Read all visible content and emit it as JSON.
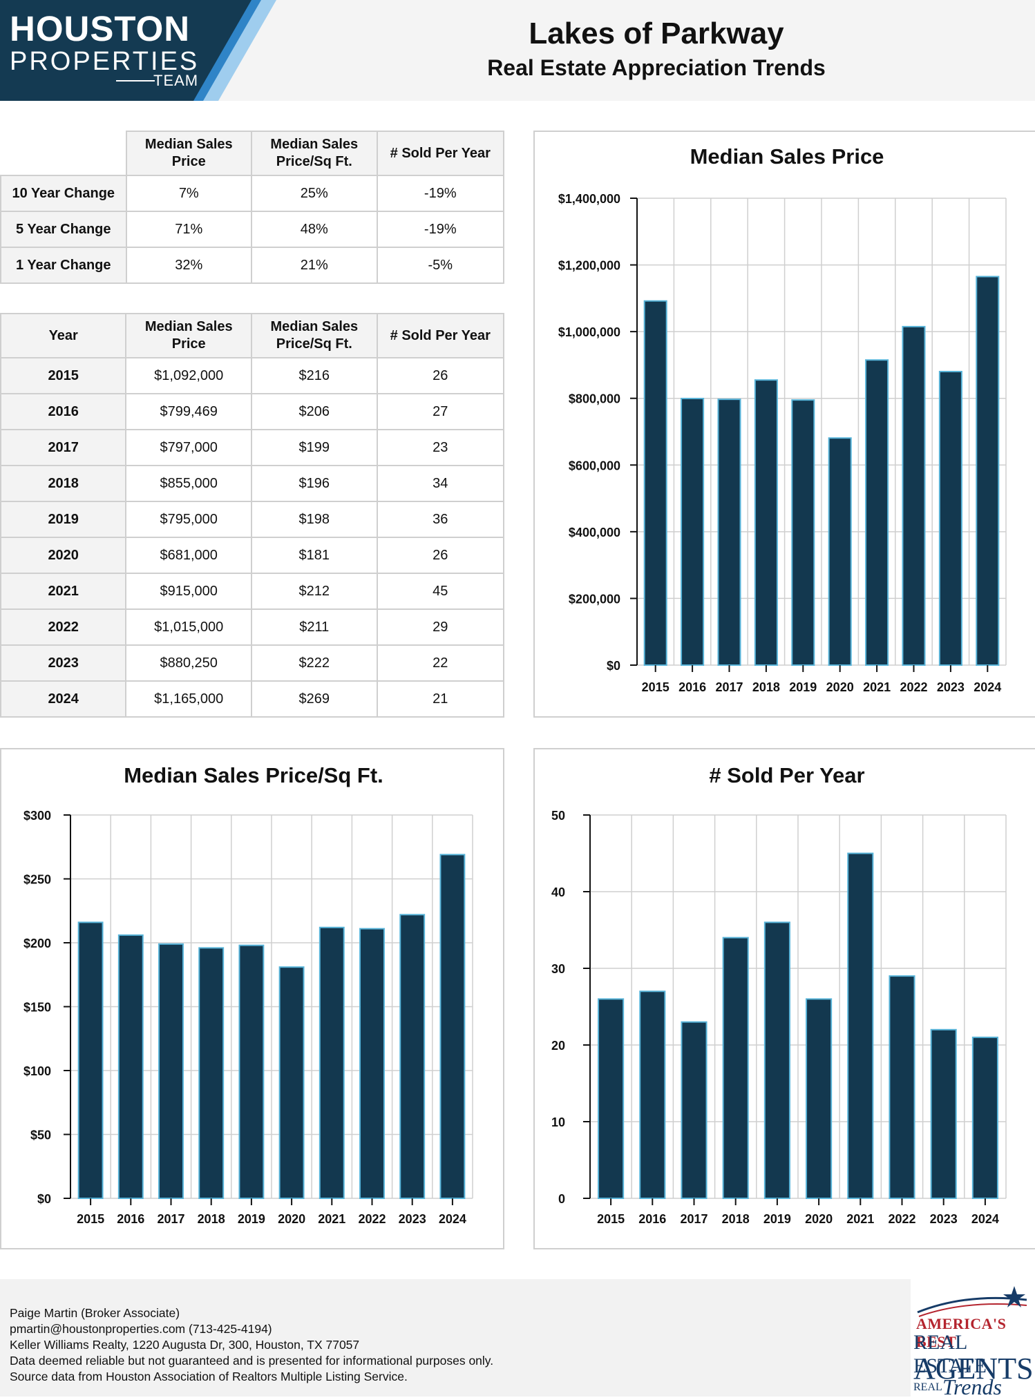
{
  "logo": {
    "line1": "HOUSTON",
    "line2": "PROPERTIES",
    "line3": "TEAM"
  },
  "header": {
    "title": "Lakes of Parkway",
    "subtitle": "Real Estate Appreciation Trends"
  },
  "change_table": {
    "columns": [
      "Median Sales Price",
      "Median Sales Price/Sq Ft.",
      "# Sold Per Year"
    ],
    "rows": [
      {
        "label": "10 Year Change",
        "values": [
          "7%",
          "25%",
          "-19%"
        ]
      },
      {
        "label": "5 Year Change",
        "values": [
          "71%",
          "48%",
          "-19%"
        ]
      },
      {
        "label": "1 Year Change",
        "values": [
          "32%",
          "21%",
          "-5%"
        ]
      }
    ]
  },
  "year_table": {
    "columns": [
      "Year",
      "Median Sales Price",
      "Median Sales Price/Sq Ft.",
      "# Sold Per Year"
    ],
    "rows": [
      [
        "2015",
        "$1,092,000",
        "$216",
        "26"
      ],
      [
        "2016",
        "$799,469",
        "$206",
        "27"
      ],
      [
        "2017",
        "$797,000",
        "$199",
        "23"
      ],
      [
        "2018",
        "$855,000",
        "$196",
        "34"
      ],
      [
        "2019",
        "$795,000",
        "$198",
        "36"
      ],
      [
        "2020",
        "$681,000",
        "$181",
        "26"
      ],
      [
        "2021",
        "$915,000",
        "$212",
        "45"
      ],
      [
        "2022",
        "$1,015,000",
        "$211",
        "29"
      ],
      [
        "2023",
        "$880,250",
        "$222",
        "22"
      ],
      [
        "2024",
        "$1,165,000",
        "$269",
        "21"
      ]
    ]
  },
  "chart_data": [
    {
      "type": "bar",
      "title": "Median Sales Price",
      "categories": [
        "2015",
        "2016",
        "2017",
        "2018",
        "2019",
        "2020",
        "2021",
        "2022",
        "2023",
        "2024"
      ],
      "values": [
        1092000,
        799469,
        797000,
        855000,
        795000,
        681000,
        915000,
        1015000,
        880250,
        1165000
      ],
      "ylim": [
        0,
        1400000
      ],
      "yticks": [
        0,
        200000,
        400000,
        600000,
        800000,
        1000000,
        1200000,
        1400000
      ],
      "ytick_labels": [
        "$0",
        "$200,000",
        "$400,000",
        "$600,000",
        "$800,000",
        "$1,000,000",
        "$1,200,000",
        "$1,400,000"
      ],
      "grid": true
    },
    {
      "type": "bar",
      "title": "Median Sales Price/Sq Ft.",
      "categories": [
        "2015",
        "2016",
        "2017",
        "2018",
        "2019",
        "2020",
        "2021",
        "2022",
        "2023",
        "2024"
      ],
      "values": [
        216,
        206,
        199,
        196,
        198,
        181,
        212,
        211,
        222,
        269
      ],
      "ylim": [
        0,
        300
      ],
      "yticks": [
        0,
        50,
        100,
        150,
        200,
        250,
        300
      ],
      "ytick_labels": [
        "$0",
        "$50",
        "$100",
        "$150",
        "$200",
        "$250",
        "$300"
      ],
      "grid": true
    },
    {
      "type": "bar",
      "title": "# Sold Per Year",
      "categories": [
        "2015",
        "2016",
        "2017",
        "2018",
        "2019",
        "2020",
        "2021",
        "2022",
        "2023",
        "2024"
      ],
      "values": [
        26,
        27,
        23,
        34,
        36,
        26,
        45,
        29,
        22,
        21
      ],
      "ylim": [
        0,
        50
      ],
      "yticks": [
        0,
        10,
        20,
        30,
        40,
        50
      ],
      "ytick_labels": [
        "0",
        "10",
        "20",
        "30",
        "40",
        "50"
      ],
      "grid": true
    }
  ],
  "colors": {
    "bar_fill": "#13384f",
    "bar_edge": "#58b4d9",
    "header_navy": "#143a52",
    "accent_blue": "#2f84c7",
    "accent_light": "#9fcdee"
  },
  "footer": {
    "lines": [
      "Paige Martin (Broker Associate)",
      "pmartin@houstonproperties.com (713-425-4194)",
      "Keller Williams Realty, 1220 Augusta Dr, 300, Houston, TX 77057",
      "Data deemed reliable but not guaranteed and is presented for informational purposes only.",
      "Source data from Houston Association of Realtors Multiple Listing Service."
    ]
  },
  "badge": {
    "line1": "AMERICA'S BEST",
    "line2": "REAL ESTATE",
    "line3": "AGENTS",
    "line4": "REAL",
    "line5": "Trends"
  }
}
